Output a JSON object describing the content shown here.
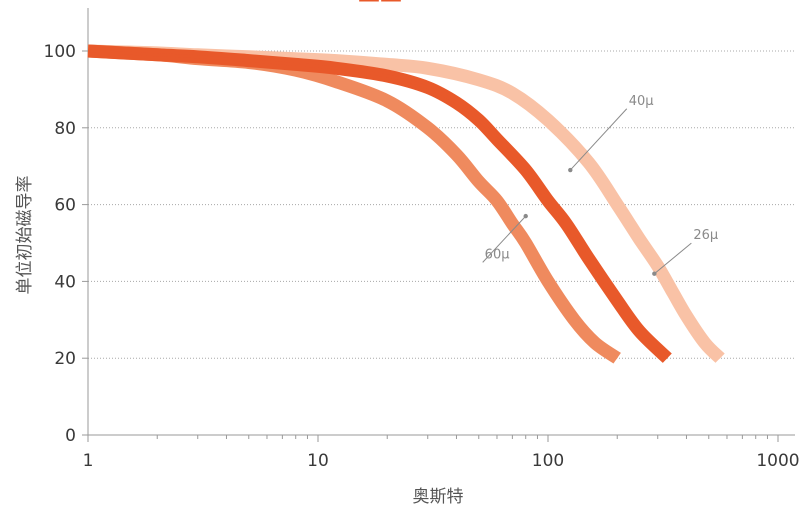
{
  "chart_data": {
    "type": "line",
    "title_fragment": "——",
    "xlabel": "奥斯特",
    "ylabel": "单位初始磁导率",
    "x_scale": "log",
    "xlim": [
      1,
      1000
    ],
    "ylim": [
      0,
      110
    ],
    "x_ticks": [
      1,
      10,
      100,
      1000
    ],
    "x_tick_labels": [
      "1",
      "10",
      "100",
      "1000"
    ],
    "y_ticks": [
      0,
      20,
      40,
      60,
      80,
      100
    ],
    "y_tick_labels": [
      "0",
      "20",
      "40",
      "60",
      "80",
      "100"
    ],
    "grid": "horizontal dotted",
    "series": [
      {
        "name": "60μ",
        "color": "#ef8a5e",
        "x": [
          1,
          2,
          3,
          5,
          8,
          12,
          20,
          30,
          40,
          50,
          60,
          70,
          80,
          100,
          130,
          160,
          200
        ],
        "y": [
          100,
          99,
          98,
          97,
          95,
          92,
          87,
          80,
          73,
          66,
          61,
          55,
          50,
          40,
          30,
          24,
          20
        ]
      },
      {
        "name": "40μ",
        "color": "#e8592a",
        "x": [
          1,
          2,
          3,
          5,
          8,
          12,
          20,
          30,
          40,
          50,
          60,
          80,
          100,
          120,
          150,
          200,
          250,
          330
        ],
        "y": [
          100,
          99,
          98.5,
          97.5,
          96.5,
          95.5,
          93.5,
          90.5,
          86.5,
          82,
          77,
          69,
          61,
          55,
          46,
          35,
          27,
          20
        ]
      },
      {
        "name": "26μ",
        "color": "#f9c2a6",
        "x": [
          1,
          2,
          3,
          5,
          8,
          12,
          20,
          30,
          50,
          70,
          100,
          150,
          200,
          250,
          300,
          350,
          400,
          480,
          560
        ],
        "y": [
          100,
          99.5,
          99,
          98.5,
          98,
          97.5,
          96.5,
          95.5,
          92.5,
          89,
          82,
          71,
          60,
          51,
          44,
          37,
          31,
          24,
          20
        ]
      }
    ],
    "annotations": [
      {
        "text": "40μ",
        "x": 220,
        "y": 86,
        "points_to": [
          125,
          69
        ]
      },
      {
        "text": "60μ",
        "x": 52,
        "y": 46,
        "points_to": [
          80,
          57
        ]
      },
      {
        "text": "26μ",
        "x": 420,
        "y": 51,
        "points_to": [
          290,
          42
        ]
      }
    ]
  }
}
